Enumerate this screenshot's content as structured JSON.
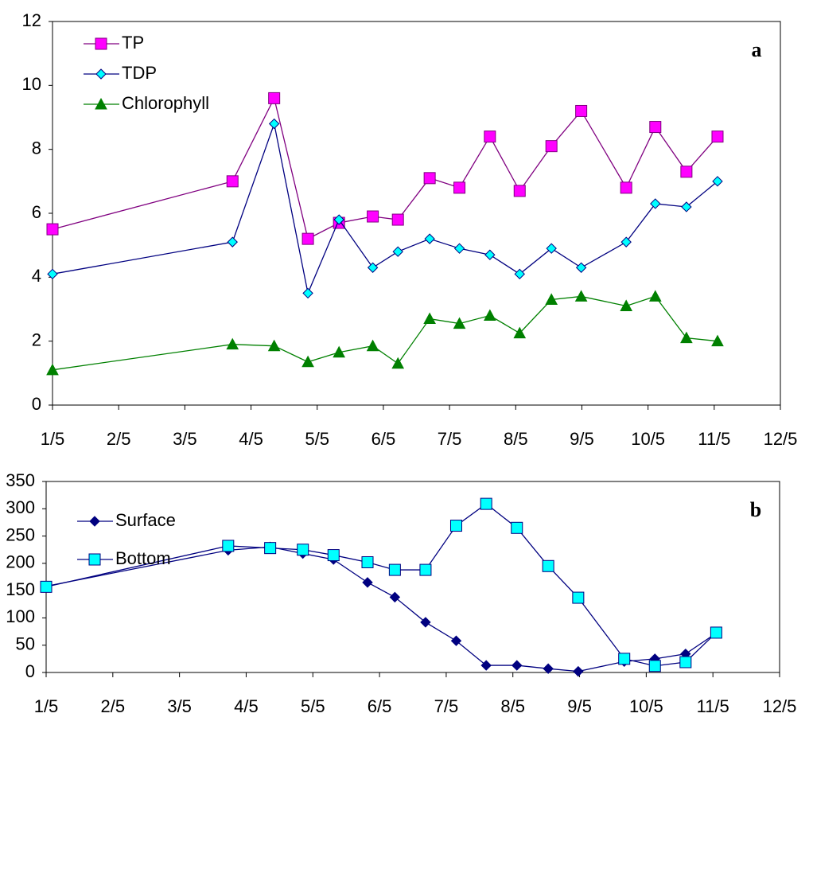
{
  "chart_data": [
    {
      "type": "line",
      "annotation": "a",
      "x": [
        1.0,
        3.72,
        4.35,
        4.86,
        5.33,
        5.84,
        6.22,
        6.7,
        7.15,
        7.61,
        8.06,
        8.54,
        8.99,
        9.67,
        10.11,
        10.58,
        11.05
      ],
      "xlim": [
        1,
        12
      ],
      "xticks": [
        {
          "value": 1,
          "label": "1/5"
        },
        {
          "value": 2,
          "label": "2/5"
        },
        {
          "value": 3,
          "label": "3/5"
        },
        {
          "value": 4,
          "label": "4/5"
        },
        {
          "value": 5,
          "label": "5/5"
        },
        {
          "value": 6,
          "label": "6/5"
        },
        {
          "value": 7,
          "label": "7/5"
        },
        {
          "value": 8,
          "label": "8/5"
        },
        {
          "value": 9,
          "label": "9/5"
        },
        {
          "value": 10,
          "label": "10/5"
        },
        {
          "value": 11,
          "label": "11/5"
        },
        {
          "value": 12,
          "label": "12/5"
        }
      ],
      "ylim": [
        0,
        12
      ],
      "yticks": [
        0,
        2,
        4,
        6,
        8,
        10,
        12
      ],
      "legend": "upper-left",
      "series": [
        {
          "name": "TP",
          "color": "#800080",
          "marker": "square",
          "marker_color": "#ff00ff",
          "values": [
            5.5,
            7.0,
            9.6,
            5.2,
            5.7,
            5.9,
            5.8,
            7.1,
            6.8,
            8.4,
            6.7,
            8.1,
            9.2,
            6.8,
            8.7,
            7.3,
            8.4
          ]
        },
        {
          "name": "TDP",
          "color": "#000080",
          "marker": "diamond",
          "marker_color": "#00ffff",
          "values": [
            4.1,
            5.1,
            8.8,
            3.5,
            5.8,
            4.3,
            4.8,
            5.2,
            4.9,
            4.7,
            4.1,
            4.9,
            4.3,
            5.1,
            6.3,
            6.2,
            7.0
          ]
        },
        {
          "name": "Chlorophyll",
          "color": "#008000",
          "marker": "triangle",
          "marker_color": "#008000",
          "values": [
            1.1,
            1.9,
            1.85,
            1.35,
            1.65,
            1.85,
            1.3,
            2.7,
            2.55,
            2.8,
            2.25,
            3.3,
            3.4,
            3.1,
            3.4,
            2.1,
            2.0
          ]
        }
      ]
    },
    {
      "type": "line",
      "annotation": "b",
      "x": [
        1.0,
        3.73,
        4.36,
        4.85,
        5.31,
        5.82,
        6.23,
        6.69,
        7.15,
        7.6,
        8.06,
        8.53,
        8.98,
        9.67,
        10.13,
        10.59,
        11.05
      ],
      "xlim": [
        1,
        12
      ],
      "xticks": [
        {
          "value": 1,
          "label": "1/5"
        },
        {
          "value": 2,
          "label": "2/5"
        },
        {
          "value": 3,
          "label": "3/5"
        },
        {
          "value": 4,
          "label": "4/5"
        },
        {
          "value": 5,
          "label": "5/5"
        },
        {
          "value": 6,
          "label": "6/5"
        },
        {
          "value": 7,
          "label": "7/5"
        },
        {
          "value": 8,
          "label": "8/5"
        },
        {
          "value": 9,
          "label": "9/5"
        },
        {
          "value": 10,
          "label": "10/5"
        },
        {
          "value": 11,
          "label": "11/5"
        },
        {
          "value": 12,
          "label": "12/5"
        }
      ],
      "ylim": [
        0,
        350
      ],
      "yticks": [
        0,
        50,
        100,
        150,
        200,
        250,
        300,
        350
      ],
      "legend": "upper-left",
      "series": [
        {
          "name": "Surface",
          "color": "#000080",
          "marker": "diamond",
          "marker_color": "#000080",
          "values": [
            158,
            224,
            230,
            218,
            207,
            165,
            138,
            92,
            58,
            13,
            13,
            7,
            2,
            20,
            25,
            34,
            72
          ]
        },
        {
          "name": "Bottom",
          "color": "#000080",
          "marker": "square",
          "marker_color": "#00ffff",
          "values": [
            157,
            232,
            228,
            225,
            215,
            202,
            188,
            188,
            269,
            309,
            265,
            195,
            137,
            25,
            12,
            19,
            73
          ]
        }
      ]
    }
  ]
}
